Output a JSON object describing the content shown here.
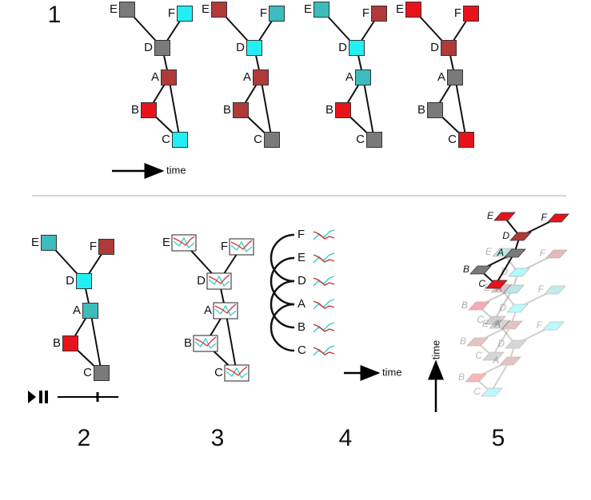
{
  "panel_labels": [
    "1",
    "2",
    "3",
    "4",
    "5"
  ],
  "nodes": [
    "E",
    "F",
    "D",
    "A",
    "B",
    "C"
  ],
  "time_label": "time",
  "snapshots": [
    {
      "colors": [
        "#7a7a7a",
        "#22eef4",
        "#7a7a7a",
        "#b03a3a",
        "#e8131a",
        "#22eef4"
      ]
    },
    {
      "colors": [
        "#b03a3a",
        "#3cbcbc",
        "#22eef4",
        "#b03a3a",
        "#b03a3a",
        "#7a7a7a"
      ]
    },
    {
      "colors": [
        "#3cbcbc",
        "#b03a3a",
        "#22eef4",
        "#3cbcbc",
        "#e8131a",
        "#7a7a7a"
      ]
    },
    {
      "colors": [
        "#e8131a",
        "#e8131a",
        "#b03a3a",
        "#7a7a7a",
        "#7a7a7a",
        "#e8131a"
      ]
    }
  ],
  "animated_colors": [
    "#3cbcbc",
    "#b03a3a",
    "#22eef4",
    "#3cbcbc",
    "#e8131a",
    "#7a7a7a"
  ]
}
